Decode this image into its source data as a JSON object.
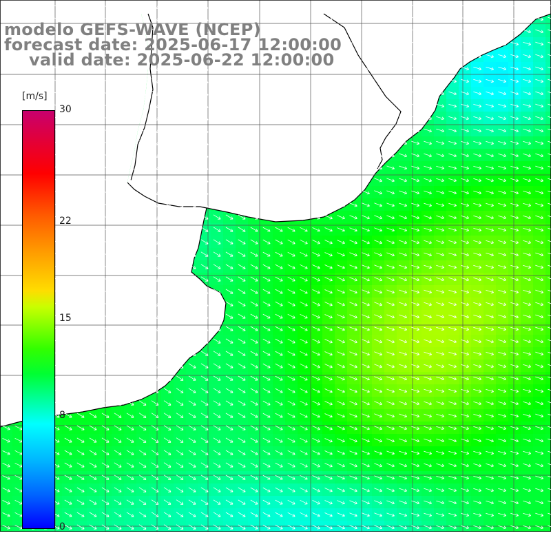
{
  "title": {
    "model": "modelo GEFS-WAVE (NCEP)",
    "forecast": "forecast date: 2025-06-17 12:00:00",
    "valid": "valid date: 2025-06-22 12:00:00"
  },
  "colorbar": {
    "unit": "[m/s]",
    "ticks": [
      "30",
      "22",
      "15",
      "8",
      "0"
    ],
    "tick_values": [
      30,
      22,
      15,
      8,
      0
    ],
    "range": [
      0,
      30
    ]
  },
  "map": {
    "field": "wind speed",
    "arrow_direction": "toward southeast",
    "land_color": "#ffffff",
    "coastline_color": "#000000",
    "grid_color": "#555555",
    "palette": {
      "low": "#0000ff",
      "mid_low": "#00ffff",
      "mid": "#00ff00",
      "high": "#ffff00",
      "max": "#c8006e"
    }
  }
}
